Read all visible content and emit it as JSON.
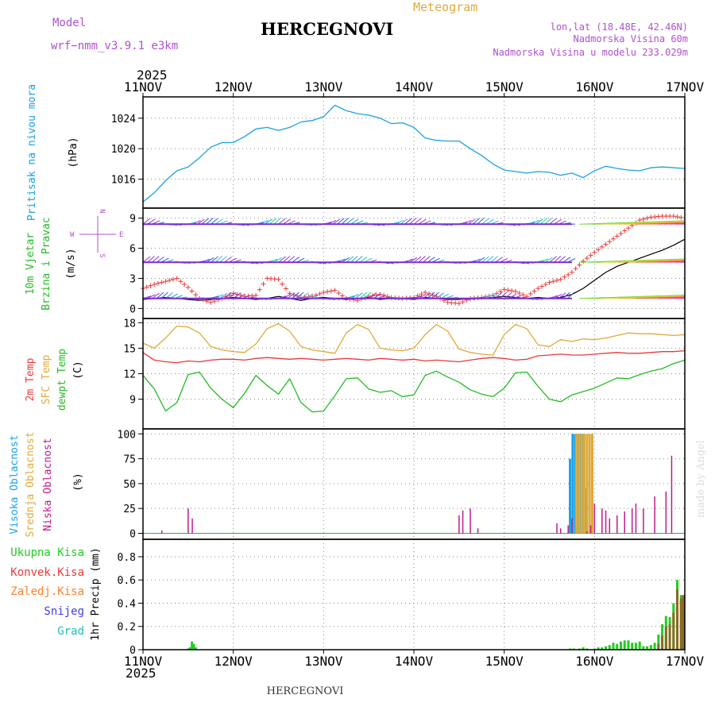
{
  "header": {
    "model_label": "Model",
    "model_name": "wrf−nmm_v3.9.1  e3km",
    "chart_type_label": "Meteogram",
    "station_title": "HERCEGNOVI",
    "lonlat": "lon,lat (18.48E, 42.46N)",
    "altitude": "Nadmorska Visina 60m",
    "model_altitude": "Nadmorska Visina u modelu 233.029m",
    "footer_station": "HERCEGNOVI",
    "credit": "made by Angel"
  },
  "time_axis": {
    "year": "2025",
    "ticks": [
      "11NOV",
      "12NOV",
      "13NOV",
      "14NOV",
      "15NOV",
      "16NOV",
      "17NOV"
    ],
    "range_hours": [
      0,
      144
    ]
  },
  "colors": {
    "pressure": "#1ba1e2",
    "wind": "#22bb22",
    "gust": "#e83a3a",
    "t2m": "#e83a3a",
    "tsfc": "#e0aa3a",
    "dewpoint": "#22bb22",
    "cloud_high": "#1ba1e2",
    "cloud_mid": "#e0aa3a",
    "cloud_low": "#c01b8c",
    "purple_text": "#b050d0",
    "precip_total": "#22cc22",
    "precip_conv": "#e83a3a",
    "precip_frozen": "#ff7f27",
    "precip_snow": "#4040e0",
    "precip_hail": "#22bbbb"
  },
  "chart_data": [
    {
      "id": "pressure",
      "type": "line",
      "ylabel": [
        "Pritisak na nivou mora",
        "(hPa)"
      ],
      "yticks": [
        1016,
        1020,
        1024
      ],
      "ylim": [
        1012.2,
        1026.8
      ],
      "series": [
        {
          "name": "Pritisak na nivou mora",
          "x": [
            0,
            3,
            6,
            9,
            12,
            15,
            18,
            21,
            24,
            27,
            30,
            33,
            36,
            39,
            42,
            45,
            48,
            51,
            54,
            57,
            60,
            63,
            66,
            69,
            72,
            75,
            78,
            81,
            84,
            87,
            90,
            93,
            96,
            99,
            102,
            105,
            108,
            111,
            114,
            117,
            120,
            123,
            126,
            129,
            132,
            135,
            138,
            141,
            144
          ],
          "values": [
            1013.0,
            1014.2,
            1015.8,
            1017.1,
            1017.6,
            1018.8,
            1020.2,
            1020.8,
            1020.8,
            1021.6,
            1022.6,
            1022.8,
            1022.4,
            1022.8,
            1023.5,
            1023.7,
            1024.2,
            1025.7,
            1025.0,
            1024.6,
            1024.4,
            1024.0,
            1023.3,
            1023.4,
            1022.8,
            1021.4,
            1021.1,
            1021.0,
            1021.0,
            1020.0,
            1019.1,
            1018.0,
            1017.2,
            1017.0,
            1016.8,
            1017.0,
            1016.9,
            1016.5,
            1016.8,
            1016.2,
            1017.1,
            1017.7,
            1017.4,
            1017.2,
            1017.1,
            1017.5,
            1017.6,
            1017.5,
            1017.4
          ]
        }
      ]
    },
    {
      "id": "wind",
      "type": "line",
      "ylabel": [
        "10m Vjetar",
        "Brzina i Pravac",
        "(m/s)"
      ],
      "compass": {
        "n": "N",
        "s": "S",
        "e": "E",
        "w": "W"
      },
      "yticks": [
        0,
        3,
        6,
        9
      ],
      "ylim": [
        -1,
        10
      ],
      "series": [
        {
          "name": "Brzina vjetra",
          "x": [
            0,
            3,
            6,
            9,
            12,
            15,
            18,
            21,
            24,
            27,
            30,
            33,
            36,
            39,
            42,
            45,
            48,
            51,
            54,
            57,
            60,
            63,
            66,
            69,
            72,
            75,
            78,
            81,
            84,
            87,
            90,
            93,
            96,
            99,
            102,
            105,
            108,
            111,
            114,
            117,
            120,
            123,
            126,
            129,
            132,
            135,
            138,
            141,
            144
          ],
          "values": [
            0.9,
            1.0,
            1.1,
            1.0,
            0.9,
            0.8,
            0.9,
            1.0,
            1.1,
            1.0,
            0.9,
            1.0,
            1.2,
            1.0,
            0.8,
            1.0,
            1.1,
            1.0,
            0.9,
            1.0,
            1.1,
            0.9,
            1.0,
            1.0,
            0.9,
            1.1,
            1.0,
            0.9,
            0.9,
            1.0,
            1.0,
            1.1,
            1.2,
            1.1,
            1.0,
            1.1,
            1.0,
            1.1,
            1.4,
            2.0,
            2.8,
            3.6,
            4.2,
            4.6,
            5.0,
            5.4,
            5.8,
            6.3,
            6.9
          ]
        },
        {
          "name": "Udari vjetra",
          "x": [
            0,
            3,
            6,
            9,
            12,
            15,
            18,
            21,
            24,
            27,
            30,
            33,
            36,
            39,
            42,
            45,
            48,
            51,
            54,
            57,
            60,
            63,
            66,
            69,
            72,
            75,
            78,
            81,
            84,
            87,
            90,
            93,
            96,
            99,
            102,
            105,
            108,
            111,
            114,
            117,
            120,
            123,
            126,
            129,
            132,
            135,
            138,
            141,
            144
          ],
          "values": [
            2.0,
            2.4,
            2.7,
            3.0,
            2.1,
            1.0,
            0.6,
            1.0,
            1.5,
            1.2,
            1.3,
            3.0,
            2.9,
            1.5,
            1.1,
            1.2,
            1.6,
            1.8,
            1.0,
            0.8,
            1.2,
            1.4,
            1.1,
            1.0,
            1.1,
            1.6,
            1.2,
            0.6,
            0.5,
            1.0,
            1.1,
            1.3,
            1.9,
            1.7,
            1.2,
            2.0,
            2.6,
            2.9,
            3.6,
            4.7,
            5.6,
            6.4,
            7.2,
            8.0,
            8.8,
            9.1,
            9.2,
            9.2,
            9.0
          ]
        }
      ]
    },
    {
      "id": "temperature",
      "type": "line",
      "ylabel": [
        "2m Temp",
        "SFC Temp",
        "dewpt Temp",
        "(C)"
      ],
      "yticks": [
        9,
        12,
        15,
        18
      ],
      "ylim": [
        5.5,
        18.5
      ],
      "series": [
        {
          "name": "2m Temp",
          "x": [
            0,
            3,
            6,
            9,
            12,
            15,
            18,
            21,
            24,
            27,
            30,
            33,
            36,
            39,
            42,
            45,
            48,
            51,
            54,
            57,
            60,
            63,
            66,
            69,
            72,
            75,
            78,
            81,
            84,
            87,
            90,
            93,
            96,
            99,
            102,
            105,
            108,
            111,
            114,
            117,
            120,
            123,
            126,
            129,
            132,
            135,
            138,
            141,
            144
          ],
          "values": [
            14.5,
            13.6,
            13.4,
            13.3,
            13.5,
            13.4,
            13.6,
            13.7,
            13.7,
            13.6,
            13.8,
            13.9,
            13.8,
            13.7,
            13.8,
            13.7,
            13.6,
            13.7,
            13.8,
            13.7,
            13.6,
            13.8,
            13.7,
            13.6,
            13.7,
            13.5,
            13.6,
            13.5,
            13.4,
            13.6,
            13.8,
            13.9,
            13.8,
            13.6,
            13.7,
            14.1,
            14.2,
            14.3,
            14.2,
            14.2,
            14.3,
            14.4,
            14.5,
            14.4,
            14.4,
            14.5,
            14.6,
            14.6,
            14.7
          ]
        },
        {
          "name": "SFC Temp",
          "x": [
            0,
            3,
            6,
            9,
            12,
            15,
            18,
            21,
            24,
            27,
            30,
            33,
            36,
            39,
            42,
            45,
            48,
            51,
            54,
            57,
            60,
            63,
            66,
            69,
            72,
            75,
            78,
            81,
            84,
            87,
            90,
            93,
            96,
            99,
            102,
            105,
            108,
            111,
            114,
            117,
            120,
            123,
            126,
            129,
            132,
            135,
            138,
            141,
            144
          ],
          "values": [
            15.6,
            15.0,
            16.2,
            17.6,
            17.5,
            16.8,
            15.2,
            14.8,
            14.6,
            14.5,
            15.5,
            17.3,
            17.9,
            17.0,
            15.2,
            14.8,
            14.6,
            14.4,
            16.8,
            17.8,
            17.2,
            15.0,
            14.8,
            14.7,
            15.0,
            16.6,
            17.8,
            17.0,
            14.9,
            14.5,
            14.3,
            14.2,
            16.6,
            17.8,
            17.3,
            15.4,
            15.2,
            16.0,
            15.8,
            16.1,
            16.0,
            16.2,
            16.5,
            16.8,
            16.7,
            16.7,
            16.6,
            16.5,
            16.6
          ]
        },
        {
          "name": "dewpt Temp",
          "x": [
            0,
            3,
            6,
            9,
            12,
            15,
            18,
            21,
            24,
            27,
            30,
            33,
            36,
            39,
            42,
            45,
            48,
            51,
            54,
            57,
            60,
            63,
            66,
            69,
            72,
            75,
            78,
            81,
            84,
            87,
            90,
            93,
            96,
            99,
            102,
            105,
            108,
            111,
            114,
            117,
            120,
            123,
            126,
            129,
            132,
            135,
            138,
            141,
            144
          ],
          "values": [
            11.8,
            10.2,
            7.6,
            8.6,
            11.9,
            12.2,
            10.3,
            9.0,
            8.0,
            9.7,
            11.8,
            10.6,
            9.6,
            11.4,
            8.6,
            7.5,
            7.6,
            9.4,
            11.4,
            11.5,
            10.2,
            9.8,
            10.0,
            9.3,
            9.5,
            11.8,
            12.3,
            11.6,
            11.0,
            10.1,
            9.6,
            9.3,
            10.3,
            12.1,
            12.2,
            10.5,
            9.0,
            8.7,
            9.5,
            9.9,
            10.3,
            10.9,
            11.5,
            11.4,
            11.9,
            12.3,
            12.6,
            13.2,
            13.6
          ]
        }
      ]
    },
    {
      "id": "clouds",
      "type": "bar",
      "ylabel": [
        "Visoka Oblacnost",
        "Srednja Oblacnost",
        "Niska Oblacnost",
        "(%)"
      ],
      "yticks": [
        0,
        25,
        50,
        75,
        100
      ],
      "ylim": [
        -6,
        105
      ],
      "series": [
        {
          "name": "Visoka Oblacnost",
          "x": [
            113.5,
            114.2,
            114.9,
            115.6,
            116.3,
            117.0,
            117.7
          ],
          "values": [
            75,
            100,
            100,
            100,
            100,
            100,
            45
          ]
        },
        {
          "name": "Srednja Oblacnost",
          "x": [
            115.2,
            115.9,
            116.6,
            117.3,
            118.0,
            118.7,
            119.4
          ],
          "values": [
            100,
            100,
            100,
            100,
            100,
            100,
            100
          ]
        },
        {
          "name": "Niska Oblacnost",
          "x": [
            5,
            12,
            13.1,
            84,
            85,
            87,
            89,
            110,
            111,
            113,
            114,
            118,
            119,
            120,
            122,
            123,
            124,
            126,
            128,
            130,
            131,
            133,
            136,
            139,
            140.5
          ],
          "values": [
            3,
            25,
            15,
            18,
            23,
            25,
            5,
            10,
            5,
            8,
            15,
            2,
            8,
            30,
            25,
            23,
            15,
            18,
            22,
            25,
            30,
            25,
            37,
            42,
            78
          ]
        }
      ]
    },
    {
      "id": "precip",
      "type": "bar",
      "ylabel": [
        "Ukupna Kisa",
        "Konvek.Kisa",
        "Zaledj.Kisa",
        "Snijeg",
        "Grad",
        "1hr Precip (mm)"
      ],
      "yticks": [
        0,
        0.2,
        0.4,
        0.6,
        0.8
      ],
      "ylim": [
        0,
        0.95
      ],
      "series": [
        {
          "name": "Ukupna Kisa",
          "x": [
            12,
            12.5,
            13,
            13.5,
            14,
            113.5,
            114.5,
            116,
            117,
            118,
            120,
            121,
            122,
            123,
            124,
            125,
            126,
            127,
            128,
            129,
            130,
            131,
            132,
            133,
            134,
            135,
            136,
            137,
            138,
            139,
            140,
            141,
            142,
            143
          ],
          "values": [
            0.01,
            0.02,
            0.07,
            0.05,
            0.02,
            0.01,
            0.01,
            0.01,
            0.02,
            0.01,
            0.01,
            0.02,
            0.02,
            0.03,
            0.04,
            0.06,
            0.05,
            0.07,
            0.08,
            0.08,
            0.06,
            0.06,
            0.07,
            0.03,
            0.03,
            0.04,
            0.06,
            0.13,
            0.22,
            0.29,
            0.28,
            0.4,
            0.6,
            0.47
          ]
        },
        {
          "name": "Konvek.Kisa",
          "x": [
            137,
            138,
            139,
            140,
            141,
            142,
            143,
            143.6
          ],
          "values": [
            0.05,
            0.12,
            0.2,
            0.22,
            0.32,
            0.52,
            0.44,
            0.47
          ]
        }
      ]
    }
  ]
}
